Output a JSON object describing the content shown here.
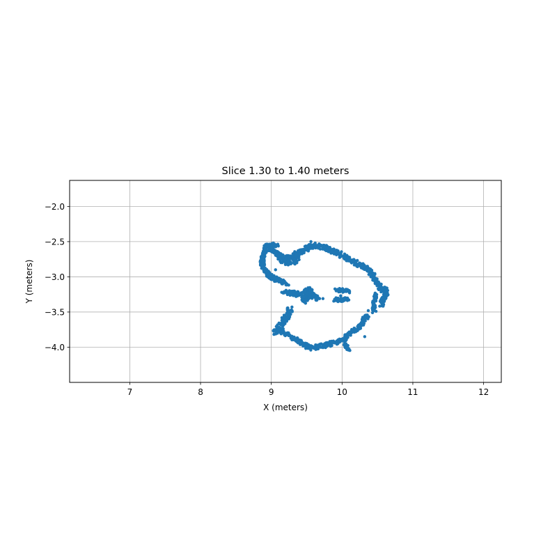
{
  "chart_data": {
    "type": "scatter",
    "title": "Slice 1.30 to 1.40 meters",
    "xlabel": "X (meters)",
    "ylabel": "Y (meters)",
    "xlim": [
      6.15,
      12.25
    ],
    "ylim": [
      -4.5,
      -1.63
    ],
    "xticks": [
      7,
      8,
      9,
      10,
      11,
      12
    ],
    "xtick_labels": [
      "7",
      "8",
      "9",
      "10",
      "11",
      "12"
    ],
    "yticks": [
      -2.0,
      -2.5,
      -3.0,
      -3.5,
      -4.0
    ],
    "ytick_labels": [
      "−2.0",
      "−2.5",
      "−3.0",
      "−3.5",
      "−4.0"
    ],
    "grid": true,
    "series": [
      {
        "color": "#1f77b4",
        "marker_size": 2.2,
        "segments": [
          {
            "name": "top-arc",
            "width": 0.035,
            "pts": [
              [
                9.05,
                -2.68
              ],
              [
                9.2,
                -2.73
              ],
              [
                9.3,
                -2.73
              ],
              [
                9.38,
                -2.68
              ],
              [
                9.45,
                -2.62
              ],
              [
                9.55,
                -2.57
              ],
              [
                9.65,
                -2.56
              ],
              [
                9.75,
                -2.58
              ],
              [
                9.85,
                -2.62
              ],
              [
                9.95,
                -2.67
              ],
              [
                10.05,
                -2.72
              ],
              [
                10.15,
                -2.78
              ],
              [
                10.25,
                -2.84
              ],
              [
                10.33,
                -2.88
              ],
              [
                10.4,
                -2.93
              ],
              [
                10.45,
                -3.0
              ],
              [
                10.5,
                -3.08
              ],
              [
                10.55,
                -3.15
              ],
              [
                10.6,
                -3.2
              ]
            ]
          },
          {
            "name": "top-left-cluster",
            "width": 0.04,
            "pts": [
              [
                9.12,
                -2.74
              ],
              [
                9.18,
                -2.77
              ],
              [
                9.25,
                -2.8
              ],
              [
                9.32,
                -2.78
              ],
              [
                9.36,
                -2.72
              ],
              [
                9.33,
                -2.66
              ]
            ]
          },
          {
            "name": "left-hook",
            "width": 0.03,
            "pts": [
              [
                9.08,
                -2.56
              ],
              [
                9.0,
                -2.55
              ],
              [
                8.94,
                -2.56
              ],
              [
                8.91,
                -2.62
              ],
              [
                8.88,
                -2.7
              ],
              [
                8.87,
                -2.78
              ],
              [
                8.88,
                -2.86
              ],
              [
                8.92,
                -2.93
              ],
              [
                8.98,
                -2.98
              ],
              [
                9.03,
                -3.02
              ],
              [
                9.1,
                -3.05
              ],
              [
                9.18,
                -3.08
              ],
              [
                9.22,
                -3.1
              ]
            ]
          },
          {
            "name": "left-top-inner",
            "width": 0.025,
            "pts": [
              [
                8.95,
                -2.6
              ],
              [
                9.02,
                -2.63
              ],
              [
                9.08,
                -2.66
              ],
              [
                9.12,
                -2.7
              ]
            ]
          },
          {
            "name": "right-edge",
            "width": 0.03,
            "pts": [
              [
                10.6,
                -3.15
              ],
              [
                10.63,
                -3.2
              ],
              [
                10.6,
                -3.28
              ],
              [
                10.57,
                -3.35
              ],
              [
                10.55,
                -3.4
              ]
            ]
          },
          {
            "name": "right-inner",
            "width": 0.025,
            "pts": [
              [
                10.48,
                -3.25
              ],
              [
                10.46,
                -3.33
              ],
              [
                10.45,
                -3.4
              ],
              [
                10.45,
                -3.47
              ]
            ]
          },
          {
            "name": "center-bar",
            "width": 0.035,
            "pts": [
              [
                9.18,
                -3.22
              ],
              [
                9.28,
                -3.23
              ],
              [
                9.38,
                -3.24
              ],
              [
                9.48,
                -3.25
              ],
              [
                9.55,
                -3.27
              ],
              [
                9.62,
                -3.29
              ],
              [
                9.67,
                -3.31
              ]
            ]
          },
          {
            "name": "center-hook",
            "width": 0.03,
            "pts": [
              [
                9.48,
                -3.2
              ],
              [
                9.54,
                -3.18
              ],
              [
                9.58,
                -3.22
              ],
              [
                9.52,
                -3.3
              ],
              [
                9.45,
                -3.33
              ],
              [
                9.48,
                -3.36
              ]
            ]
          },
          {
            "name": "right-small-bar",
            "width": 0.025,
            "pts": [
              [
                9.92,
                -3.19
              ],
              [
                9.98,
                -3.19
              ],
              [
                10.05,
                -3.2
              ],
              [
                10.1,
                -3.22
              ]
            ]
          },
          {
            "name": "right-small-dash",
            "width": 0.025,
            "pts": [
              [
                9.9,
                -3.32
              ],
              [
                9.96,
                -3.33
              ],
              [
                10.02,
                -3.33
              ],
              [
                10.08,
                -3.31
              ]
            ]
          },
          {
            "name": "left-lower-line",
            "width": 0.04,
            "pts": [
              [
                9.27,
                -3.46
              ],
              [
                9.24,
                -3.52
              ],
              [
                9.2,
                -3.58
              ],
              [
                9.17,
                -3.64
              ],
              [
                9.13,
                -3.7
              ],
              [
                9.09,
                -3.75
              ],
              [
                9.05,
                -3.79
              ],
              [
                9.08,
                -3.82
              ]
            ]
          },
          {
            "name": "bottom-arc",
            "width": 0.03,
            "pts": [
              [
                9.12,
                -3.78
              ],
              [
                9.2,
                -3.81
              ],
              [
                9.28,
                -3.85
              ],
              [
                9.36,
                -3.9
              ],
              [
                9.43,
                -3.95
              ],
              [
                9.5,
                -3.99
              ],
              [
                9.57,
                -4.02
              ],
              [
                9.65,
                -3.99
              ],
              [
                9.72,
                -3.98
              ],
              [
                9.8,
                -3.96
              ],
              [
                9.88,
                -3.94
              ],
              [
                9.95,
                -3.92
              ],
              [
                10.02,
                -3.88
              ]
            ]
          },
          {
            "name": "bottom-right-rise",
            "width": 0.03,
            "pts": [
              [
                10.02,
                -3.88
              ],
              [
                10.1,
                -3.81
              ],
              [
                10.17,
                -3.77
              ],
              [
                10.23,
                -3.72
              ],
              [
                10.28,
                -3.67
              ],
              [
                10.3,
                -3.62
              ],
              [
                10.34,
                -3.58
              ],
              [
                10.38,
                -3.56
              ]
            ]
          },
          {
            "name": "bottom-right-tail",
            "width": 0.02,
            "pts": [
              [
                10.04,
                -3.95
              ],
              [
                10.07,
                -4.0
              ],
              [
                10.1,
                -4.05
              ]
            ]
          }
        ],
        "dots": [
          [
            10.32,
            -3.85
          ],
          [
            10.48,
            -3.49
          ],
          [
            10.43,
            -3.51
          ],
          [
            10.62,
            -3.3
          ],
          [
            10.6,
            -3.33
          ],
          [
            9.35,
            -3.28
          ],
          [
            9.43,
            -3.29
          ],
          [
            9.73,
            -3.31
          ],
          [
            9.15,
            -3.1
          ],
          [
            9.06,
            -2.9
          ],
          [
            9.03,
            -2.52
          ],
          [
            9.56,
            -2.5
          ],
          [
            9.62,
            -2.52
          ],
          [
            10.44,
            -3.05
          ],
          [
            10.37,
            -3.48
          ],
          [
            9.98,
            -3.27
          ]
        ]
      }
    ]
  }
}
